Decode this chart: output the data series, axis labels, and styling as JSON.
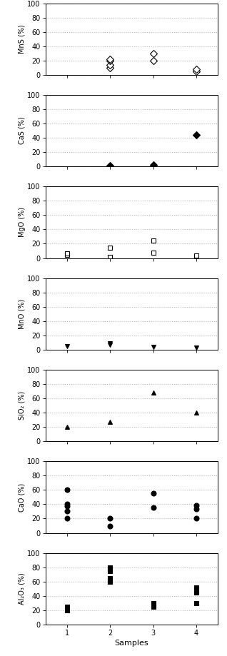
{
  "subplots": [
    {
      "ylabel": "MnS (%)",
      "marker": "D",
      "filled": false,
      "data": {
        "1": [],
        "2": [
          10,
          14,
          20,
          22
        ],
        "3": [
          20,
          30
        ],
        "4": [
          5,
          8
        ]
      }
    },
    {
      "ylabel": "CaS (%)",
      "marker": "D",
      "filled": true,
      "data": {
        "1": [],
        "2": [
          1
        ],
        "3": [
          2
        ],
        "4": [
          44
        ]
      }
    },
    {
      "ylabel": "MgO (%)",
      "marker": "s",
      "filled": false,
      "data": {
        "1": [
          5,
          7
        ],
        "2": [
          2,
          14
        ],
        "3": [
          8,
          24
        ],
        "4": [
          4
        ]
      }
    },
    {
      "ylabel": "MnO (%)",
      "marker": "v",
      "filled": true,
      "data": {
        "1": [
          5
        ],
        "2": [
          7,
          9
        ],
        "3": [
          4
        ],
        "4": [
          3
        ]
      }
    },
    {
      "ylabel": "SiO₂ (%)",
      "marker": "^",
      "filled": true,
      "data": {
        "1": [
          20
        ],
        "2": [
          27
        ],
        "3": [
          68
        ],
        "4": [
          40
        ]
      }
    },
    {
      "ylabel": "CaO (%)",
      "marker": "o",
      "filled": true,
      "data": {
        "1": [
          20,
          30,
          37,
          40,
          60
        ],
        "2": [
          10,
          20
        ],
        "3": [
          35,
          55
        ],
        "4": [
          20,
          33,
          38
        ]
      }
    },
    {
      "ylabel": "Al₂O₃ (%)",
      "marker": "s",
      "filled": true,
      "data": {
        "1": [
          20,
          25
        ],
        "2": [
          60,
          65,
          75,
          80
        ],
        "3": [
          25,
          30
        ],
        "4": [
          30,
          45,
          52
        ]
      }
    }
  ],
  "xlabel": "Samples",
  "ylim": [
    0,
    100
  ],
  "yticks": [
    0,
    20,
    40,
    60,
    80,
    100
  ],
  "xticks": [
    1,
    2,
    3,
    4
  ],
  "marker_color_filled": "black",
  "marker_color_open": "white",
  "marker_edge_color": "black",
  "marker_size": 5,
  "grid_color": "#bbbbbb",
  "grid_style": ":",
  "fig_width": 3.18,
  "fig_height": 9.19,
  "dpi": 100
}
